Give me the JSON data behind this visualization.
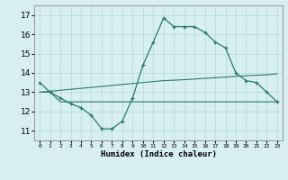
{
  "x": [
    0,
    1,
    2,
    3,
    4,
    5,
    6,
    7,
    8,
    9,
    10,
    11,
    12,
    13,
    14,
    15,
    16,
    17,
    18,
    19,
    20,
    21,
    22,
    23
  ],
  "line1": [
    13.5,
    13.0,
    12.7,
    12.4,
    12.2,
    11.8,
    11.1,
    11.1,
    11.5,
    12.7,
    14.4,
    15.6,
    16.85,
    16.4,
    16.4,
    16.4,
    16.1,
    15.6,
    15.3,
    14.0,
    13.6,
    13.5,
    13.0,
    12.5
  ],
  "line2": [
    13.0,
    13.05,
    13.1,
    13.15,
    13.2,
    13.25,
    13.3,
    13.35,
    13.4,
    13.45,
    13.5,
    13.55,
    13.6,
    13.62,
    13.65,
    13.68,
    13.72,
    13.75,
    13.78,
    13.82,
    13.85,
    13.88,
    13.9,
    13.95
  ],
  "line3": [
    13.0,
    13.0,
    12.5,
    12.5,
    12.5,
    12.5,
    12.5,
    12.5,
    12.5,
    12.5,
    12.5,
    12.5,
    12.5,
    12.5,
    12.5,
    12.5,
    12.5,
    12.5,
    12.5,
    12.5,
    12.5,
    12.5,
    12.5,
    12.5
  ],
  "line_color": "#2a7a6a",
  "bg_color": "#d7efef",
  "grid_color": "#b5d8d8",
  "xlabel": "Humidex (Indice chaleur)",
  "ylim": [
    10.5,
    17.5
  ],
  "xlim": [
    -0.5,
    23.5
  ],
  "yticks": [
    11,
    12,
    13,
    14,
    15,
    16,
    17
  ],
  "xtick_labels": [
    "0",
    "1",
    "2",
    "3",
    "4",
    "5",
    "6",
    "7",
    "8",
    "9",
    "10",
    "11",
    "12",
    "13",
    "14",
    "15",
    "16",
    "17",
    "18",
    "19",
    "20",
    "21",
    "22",
    "23"
  ]
}
